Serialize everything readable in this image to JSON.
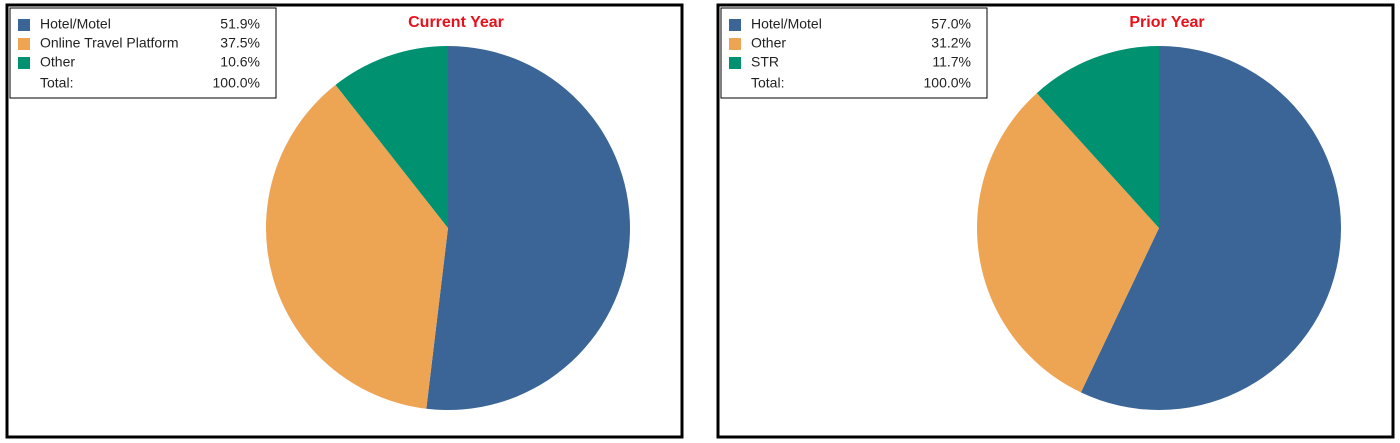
{
  "chart_data": [
    {
      "type": "pie",
      "title": "Current Year",
      "categories": [
        "Hotel/Motel",
        "Online Travel Platform",
        "Other"
      ],
      "values": [
        51.9,
        37.5,
        10.6
      ],
      "value_labels": [
        "51.9%",
        "37.5%",
        "10.6%"
      ],
      "colors": [
        "#3a6596",
        "#eda453",
        "#009270"
      ],
      "total_text": "Total:",
      "total": "100.0%"
    },
    {
      "type": "pie",
      "title": "Prior Year",
      "categories": [
        "Hotel/Motel",
        "Other",
        "STR"
      ],
      "values": [
        57.0,
        31.2,
        11.7
      ],
      "value_labels": [
        "57.0%",
        "31.2%",
        "11.7%"
      ],
      "colors": [
        "#3a6596",
        "#eda453",
        "#009270"
      ],
      "total_text": "Total:",
      "total": "100.0%"
    }
  ]
}
